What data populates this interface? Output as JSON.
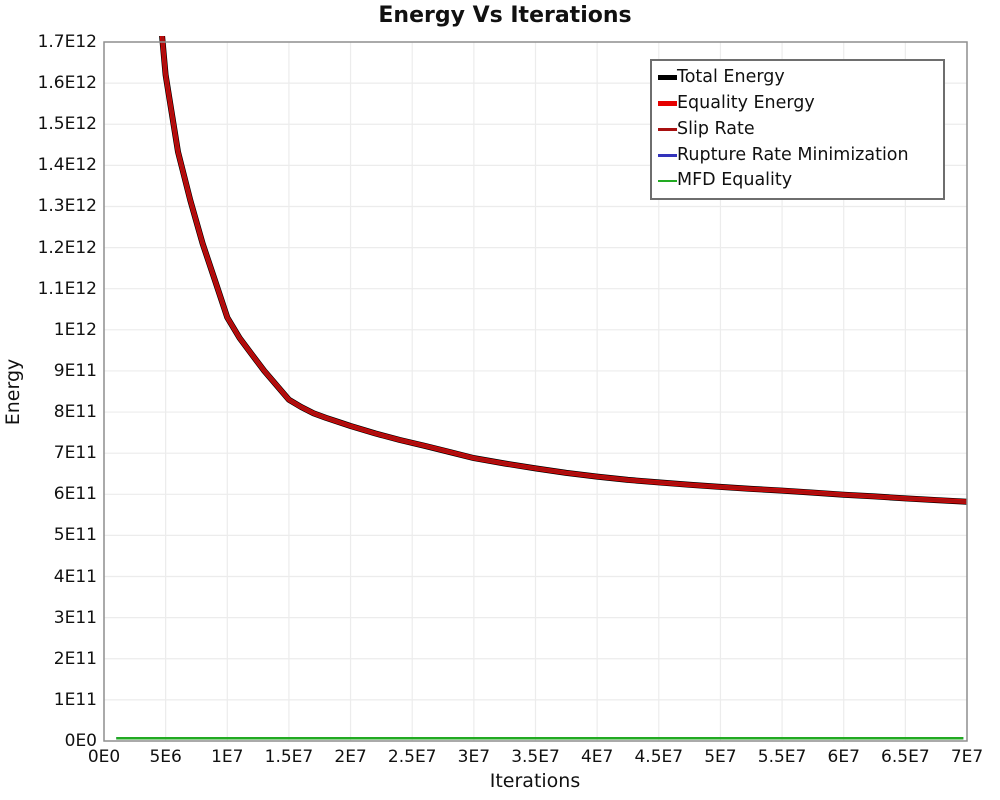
{
  "chart": {
    "title": "Energy Vs Iterations",
    "xlabel": "Iterations",
    "ylabel": "Energy"
  },
  "legend": {
    "position": "top-right",
    "items": [
      {
        "label": "Total Energy",
        "color": "#000000",
        "thickness": 5
      },
      {
        "label": "Equality Energy",
        "color": "#e60000",
        "thickness": 5
      },
      {
        "label": "Slip Rate",
        "color": "#a81010",
        "thickness": 3
      },
      {
        "label": "Rupture Rate Minimization",
        "color": "#3333bb",
        "thickness": 2.5
      },
      {
        "label": "MFD Equality",
        "color": "#22aa22",
        "thickness": 2.5
      }
    ]
  },
  "colors": {
    "grid": "#ececec",
    "plot_border": "#8f8f8f",
    "background": "#ffffff",
    "text": "#111111"
  },
  "chart_data": {
    "type": "line",
    "title": "Energy Vs Iterations",
    "xlabel": "Iterations",
    "ylabel": "Energy",
    "xlim": [
      0,
      70000000.0
    ],
    "ylim": [
      0,
      1700000000000.0
    ],
    "grid": true,
    "legend_position": "top-right",
    "x_tick_values": [
      0,
      5000000.0,
      10000000.0,
      15000000.0,
      20000000.0,
      25000000.0,
      30000000.0,
      35000000.0,
      40000000.0,
      45000000.0,
      50000000.0,
      55000000.0,
      60000000.0,
      65000000.0,
      70000000.0
    ],
    "x_tick_labels": [
      "0E0",
      "5E6",
      "1E7",
      "1.5E7",
      "2E7",
      "2.5E7",
      "3E7",
      "3.5E7",
      "4E7",
      "4.5E7",
      "5E7",
      "5.5E7",
      "6E7",
      "6.5E7",
      "7E7"
    ],
    "y_tick_values": [
      0,
      100000000000.0,
      200000000000.0,
      300000000000.0,
      400000000000.0,
      500000000000.0,
      600000000000.0,
      700000000000.0,
      800000000000.0,
      900000000000.0,
      1000000000000.0,
      1100000000000.0,
      1200000000000.0,
      1300000000000.0,
      1400000000000.0,
      1500000000000.0,
      1600000000000.0,
      1700000000000.0
    ],
    "y_tick_labels": [
      "0E0",
      "1E11",
      "2E11",
      "3E11",
      "4E11",
      "5E11",
      "6E11",
      "7E11",
      "8E11",
      "9E11",
      "1E12",
      "1.1E12",
      "1.2E12",
      "1.3E12",
      "1.4E12",
      "1.5E12",
      "1.6E12",
      "1.7E12"
    ],
    "series": [
      {
        "name": "Total Energy",
        "color": "#000000",
        "line_width": 6,
        "x": [
          4000000.0,
          5000000.0,
          6000000.0,
          7000000.0,
          8000000.0,
          9000000.0,
          10000000.0,
          11000000.0,
          12000000.0,
          13000000.0,
          14000000.0,
          15000000.0,
          16000000.0,
          17000000.0,
          18000000.0,
          19000000.0,
          20000000.0,
          22000000.0,
          24000000.0,
          26000000.0,
          28000000.0,
          30000000.0,
          32500000.0,
          35000000.0,
          37500000.0,
          40000000.0,
          42500000.0,
          45000000.0,
          47500000.0,
          50000000.0,
          52500000.0,
          55000000.0,
          57500000.0,
          60000000.0,
          62500000.0,
          65000000.0,
          67500000.0,
          70000000.0
        ],
        "y": [
          1950000000000.0,
          1620000000000.0,
          1433000000000.0,
          1315000000000.0,
          1210000000000.0,
          1120000000000.0,
          1030000000000.0,
          980000000000.0,
          940000000000.0,
          900000000000.0,
          865000000000.0,
          830000000000.0,
          812000000000.0,
          797000000000.0,
          786000000000.0,
          776000000000.0,
          766000000000.0,
          748000000000.0,
          732000000000.0,
          718000000000.0,
          703000000000.0,
          688000000000.0,
          675000000000.0,
          663000000000.0,
          652000000000.0,
          643000000000.0,
          635000000000.0,
          629000000000.0,
          623000000000.0,
          618000000000.0,
          613000000000.0,
          609000000000.0,
          604000000000.0,
          599000000000.0,
          595000000000.0,
          590000000000.0,
          586000000000.0,
          582000000000.0
        ]
      },
      {
        "name": "Equality Energy",
        "color": "#e60000",
        "line_width": 4.6,
        "x": [
          4000000.0,
          5000000.0,
          6000000.0,
          7000000.0,
          8000000.0,
          9000000.0,
          10000000.0,
          11000000.0,
          12000000.0,
          13000000.0,
          14000000.0,
          15000000.0,
          16000000.0,
          17000000.0,
          18000000.0,
          19000000.0,
          20000000.0,
          22000000.0,
          24000000.0,
          26000000.0,
          28000000.0,
          30000000.0,
          32500000.0,
          35000000.0,
          37500000.0,
          40000000.0,
          42500000.0,
          45000000.0,
          47500000.0,
          50000000.0,
          52500000.0,
          55000000.0,
          57500000.0,
          60000000.0,
          62500000.0,
          65000000.0,
          67500000.0,
          70000000.0
        ],
        "y": [
          1950000000000.0,
          1620000000000.0,
          1433000000000.0,
          1315000000000.0,
          1210000000000.0,
          1120000000000.0,
          1030000000000.0,
          980000000000.0,
          940000000000.0,
          900000000000.0,
          865000000000.0,
          830000000000.0,
          812000000000.0,
          797000000000.0,
          786000000000.0,
          776000000000.0,
          766000000000.0,
          748000000000.0,
          732000000000.0,
          718000000000.0,
          703000000000.0,
          688000000000.0,
          675000000000.0,
          663000000000.0,
          652000000000.0,
          643000000000.0,
          635000000000.0,
          629000000000.0,
          623000000000.0,
          618000000000.0,
          613000000000.0,
          609000000000.0,
          604000000000.0,
          599000000000.0,
          595000000000.0,
          590000000000.0,
          586000000000.0,
          582000000000.0
        ]
      },
      {
        "name": "Slip Rate",
        "color": "#a81010",
        "line_width": 3,
        "x": [
          4000000.0,
          5000000.0,
          6000000.0,
          7000000.0,
          8000000.0,
          9000000.0,
          10000000.0,
          11000000.0,
          12000000.0,
          13000000.0,
          14000000.0,
          15000000.0,
          16000000.0,
          17000000.0,
          18000000.0,
          19000000.0,
          20000000.0,
          22000000.0,
          24000000.0,
          26000000.0,
          28000000.0,
          30000000.0,
          32500000.0,
          35000000.0,
          37500000.0,
          40000000.0,
          42500000.0,
          45000000.0,
          47500000.0,
          50000000.0,
          52500000.0,
          55000000.0,
          57500000.0,
          60000000.0,
          62500000.0,
          65000000.0,
          67500000.0,
          70000000.0
        ],
        "y": [
          1950000000000.0,
          1620000000000.0,
          1433000000000.0,
          1315000000000.0,
          1210000000000.0,
          1120000000000.0,
          1030000000000.0,
          980000000000.0,
          940000000000.0,
          900000000000.0,
          865000000000.0,
          830000000000.0,
          812000000000.0,
          797000000000.0,
          786000000000.0,
          776000000000.0,
          766000000000.0,
          748000000000.0,
          732000000000.0,
          718000000000.0,
          703000000000.0,
          688000000000.0,
          675000000000.0,
          663000000000.0,
          652000000000.0,
          643000000000.0,
          635000000000.0,
          629000000000.0,
          623000000000.0,
          618000000000.0,
          613000000000.0,
          609000000000.0,
          604000000000.0,
          599000000000.0,
          595000000000.0,
          590000000000.0,
          586000000000.0,
          582000000000.0
        ]
      },
      {
        "name": "Rupture Rate Minimization",
        "color": "#3333bb",
        "line_width": 2.5,
        "x": [
          1000000.0,
          69700000.0
        ],
        "y": [
          6500000000.0,
          6500000000.0
        ]
      },
      {
        "name": "MFD Equality",
        "color": "#22aa22",
        "line_width": 2.5,
        "x": [
          1000000.0,
          69700000.0
        ],
        "y": [
          6500000000.0,
          6500000000.0
        ]
      }
    ]
  }
}
